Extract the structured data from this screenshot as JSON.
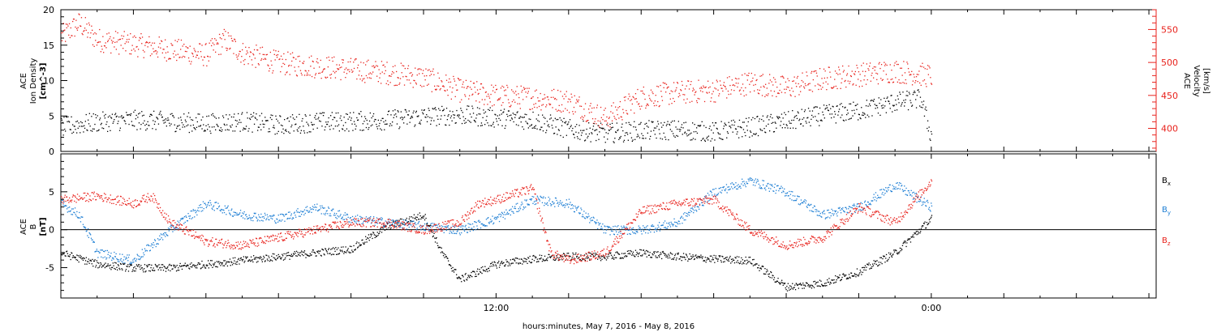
{
  "colors": {
    "black": "#000000",
    "red": "#e8221c",
    "blue": "#1f7fd4"
  },
  "x_axis": {
    "label": "hours:minutes, May  7, 2016 - May  8, 2016",
    "tick_labels": [
      {
        "hour": 12,
        "label": "12:00"
      },
      {
        "hour": 24,
        "label": "0:00"
      }
    ]
  },
  "chart_data": [
    {
      "type": "scatter",
      "panel": "top",
      "x_unit": "hours since 2016-05-07 00:00 UT",
      "xlim": [
        0,
        30.2
      ],
      "left_axis": {
        "label_lines": [
          "ACE",
          "Ion Density",
          "[cm^-3]"
        ],
        "ylim": [
          0,
          20
        ],
        "ticks": [
          0,
          5,
          10,
          15,
          20
        ]
      },
      "right_axis": {
        "label_lines": [
          "ACE",
          "Velocity",
          "[km/s]"
        ],
        "ylim": [
          365,
          580
        ],
        "ticks": [
          400,
          450,
          500,
          550
        ]
      },
      "grid": false,
      "series": [
        {
          "color": "black",
          "axis": "left",
          "x": [
            0,
            1,
            2,
            3,
            4,
            5,
            6,
            7,
            8,
            9,
            10,
            11,
            12,
            13,
            14,
            15,
            16,
            17,
            18,
            19,
            20,
            21,
            22,
            23,
            23.7,
            24
          ],
          "y": [
            3.5,
            4.2,
            4.5,
            4.3,
            4.0,
            4.3,
            3.8,
            4.2,
            4.3,
            4.5,
            5.0,
            5.2,
            4.8,
            4.5,
            3.2,
            2.6,
            3.0,
            3.1,
            2.8,
            3.5,
            4.3,
            5.2,
            5.8,
            7.0,
            7.5,
            2.0
          ]
        },
        {
          "color": "red",
          "axis": "right",
          "x": [
            0,
            0.5,
            1,
            2,
            3,
            4,
            4.5,
            5,
            6,
            7,
            8,
            9,
            10,
            11,
            12,
            13,
            14,
            15,
            16,
            17,
            18,
            19,
            20,
            21,
            22,
            23,
            24
          ],
          "y": [
            540,
            560,
            535,
            528,
            520,
            512,
            535,
            515,
            500,
            495,
            490,
            485,
            478,
            458,
            450,
            447,
            442,
            415,
            448,
            455,
            458,
            470,
            462,
            476,
            482,
            488,
            480
          ]
        }
      ]
    },
    {
      "type": "scatter",
      "panel": "bottom",
      "x_unit": "hours since 2016-05-07 00:00 UT",
      "xlim": [
        0,
        30.2
      ],
      "left_axis": {
        "label_lines": [
          "ACE",
          "B",
          "[nT]"
        ],
        "ylim": [
          -9,
          10
        ],
        "ticks": [
          -5,
          0,
          5
        ]
      },
      "legend_position": "right",
      "grid": false,
      "series": [
        {
          "name": "Bx",
          "color": "black",
          "x": [
            0,
            1,
            2,
            3,
            4,
            5,
            6,
            7,
            8,
            9,
            10,
            10.5,
            11,
            12,
            13,
            14,
            15,
            16,
            17,
            18,
            19,
            20,
            21,
            22,
            23,
            24
          ],
          "y": [
            -3,
            -4.5,
            -5,
            -5,
            -4.5,
            -4,
            -3.5,
            -3,
            -2.5,
            0.5,
            2,
            -3,
            -6.5,
            -4.5,
            -3.8,
            -3.5,
            -3.5,
            -3,
            -3.5,
            -3.8,
            -4,
            -7.5,
            -7,
            -5.5,
            -3,
            1.5
          ]
        },
        {
          "name": "By",
          "color": "blue",
          "x": [
            0,
            0.5,
            1,
            2,
            3,
            4,
            5,
            6,
            7,
            8,
            9,
            10,
            11,
            12,
            13,
            14,
            15,
            16,
            17,
            18,
            19,
            20,
            21,
            22,
            23,
            24
          ],
          "y": [
            3.5,
            2,
            -3,
            -4,
            0,
            3.5,
            2,
            1.5,
            3,
            1.5,
            1,
            0.5,
            0,
            1.5,
            4,
            3.5,
            0,
            0,
            1,
            5,
            6.5,
            5,
            2,
            3,
            6,
            3
          ]
        },
        {
          "name": "Bz",
          "color": "red",
          "x": [
            0,
            1,
            2,
            2.5,
            3,
            4,
            5,
            6,
            7,
            8,
            9,
            10,
            11,
            11.5,
            12,
            13,
            13.5,
            14,
            15,
            16,
            17,
            18,
            19,
            20,
            21,
            22,
            23,
            24
          ],
          "y": [
            4,
            4.5,
            3.5,
            4.5,
            1,
            -1.5,
            -2,
            -1,
            0,
            1,
            1,
            0,
            1,
            3.5,
            4,
            5.5,
            -3,
            -4,
            -3,
            2.5,
            3.5,
            4,
            0,
            -2,
            -1,
            3,
            1,
            6.5
          ]
        }
      ]
    }
  ]
}
